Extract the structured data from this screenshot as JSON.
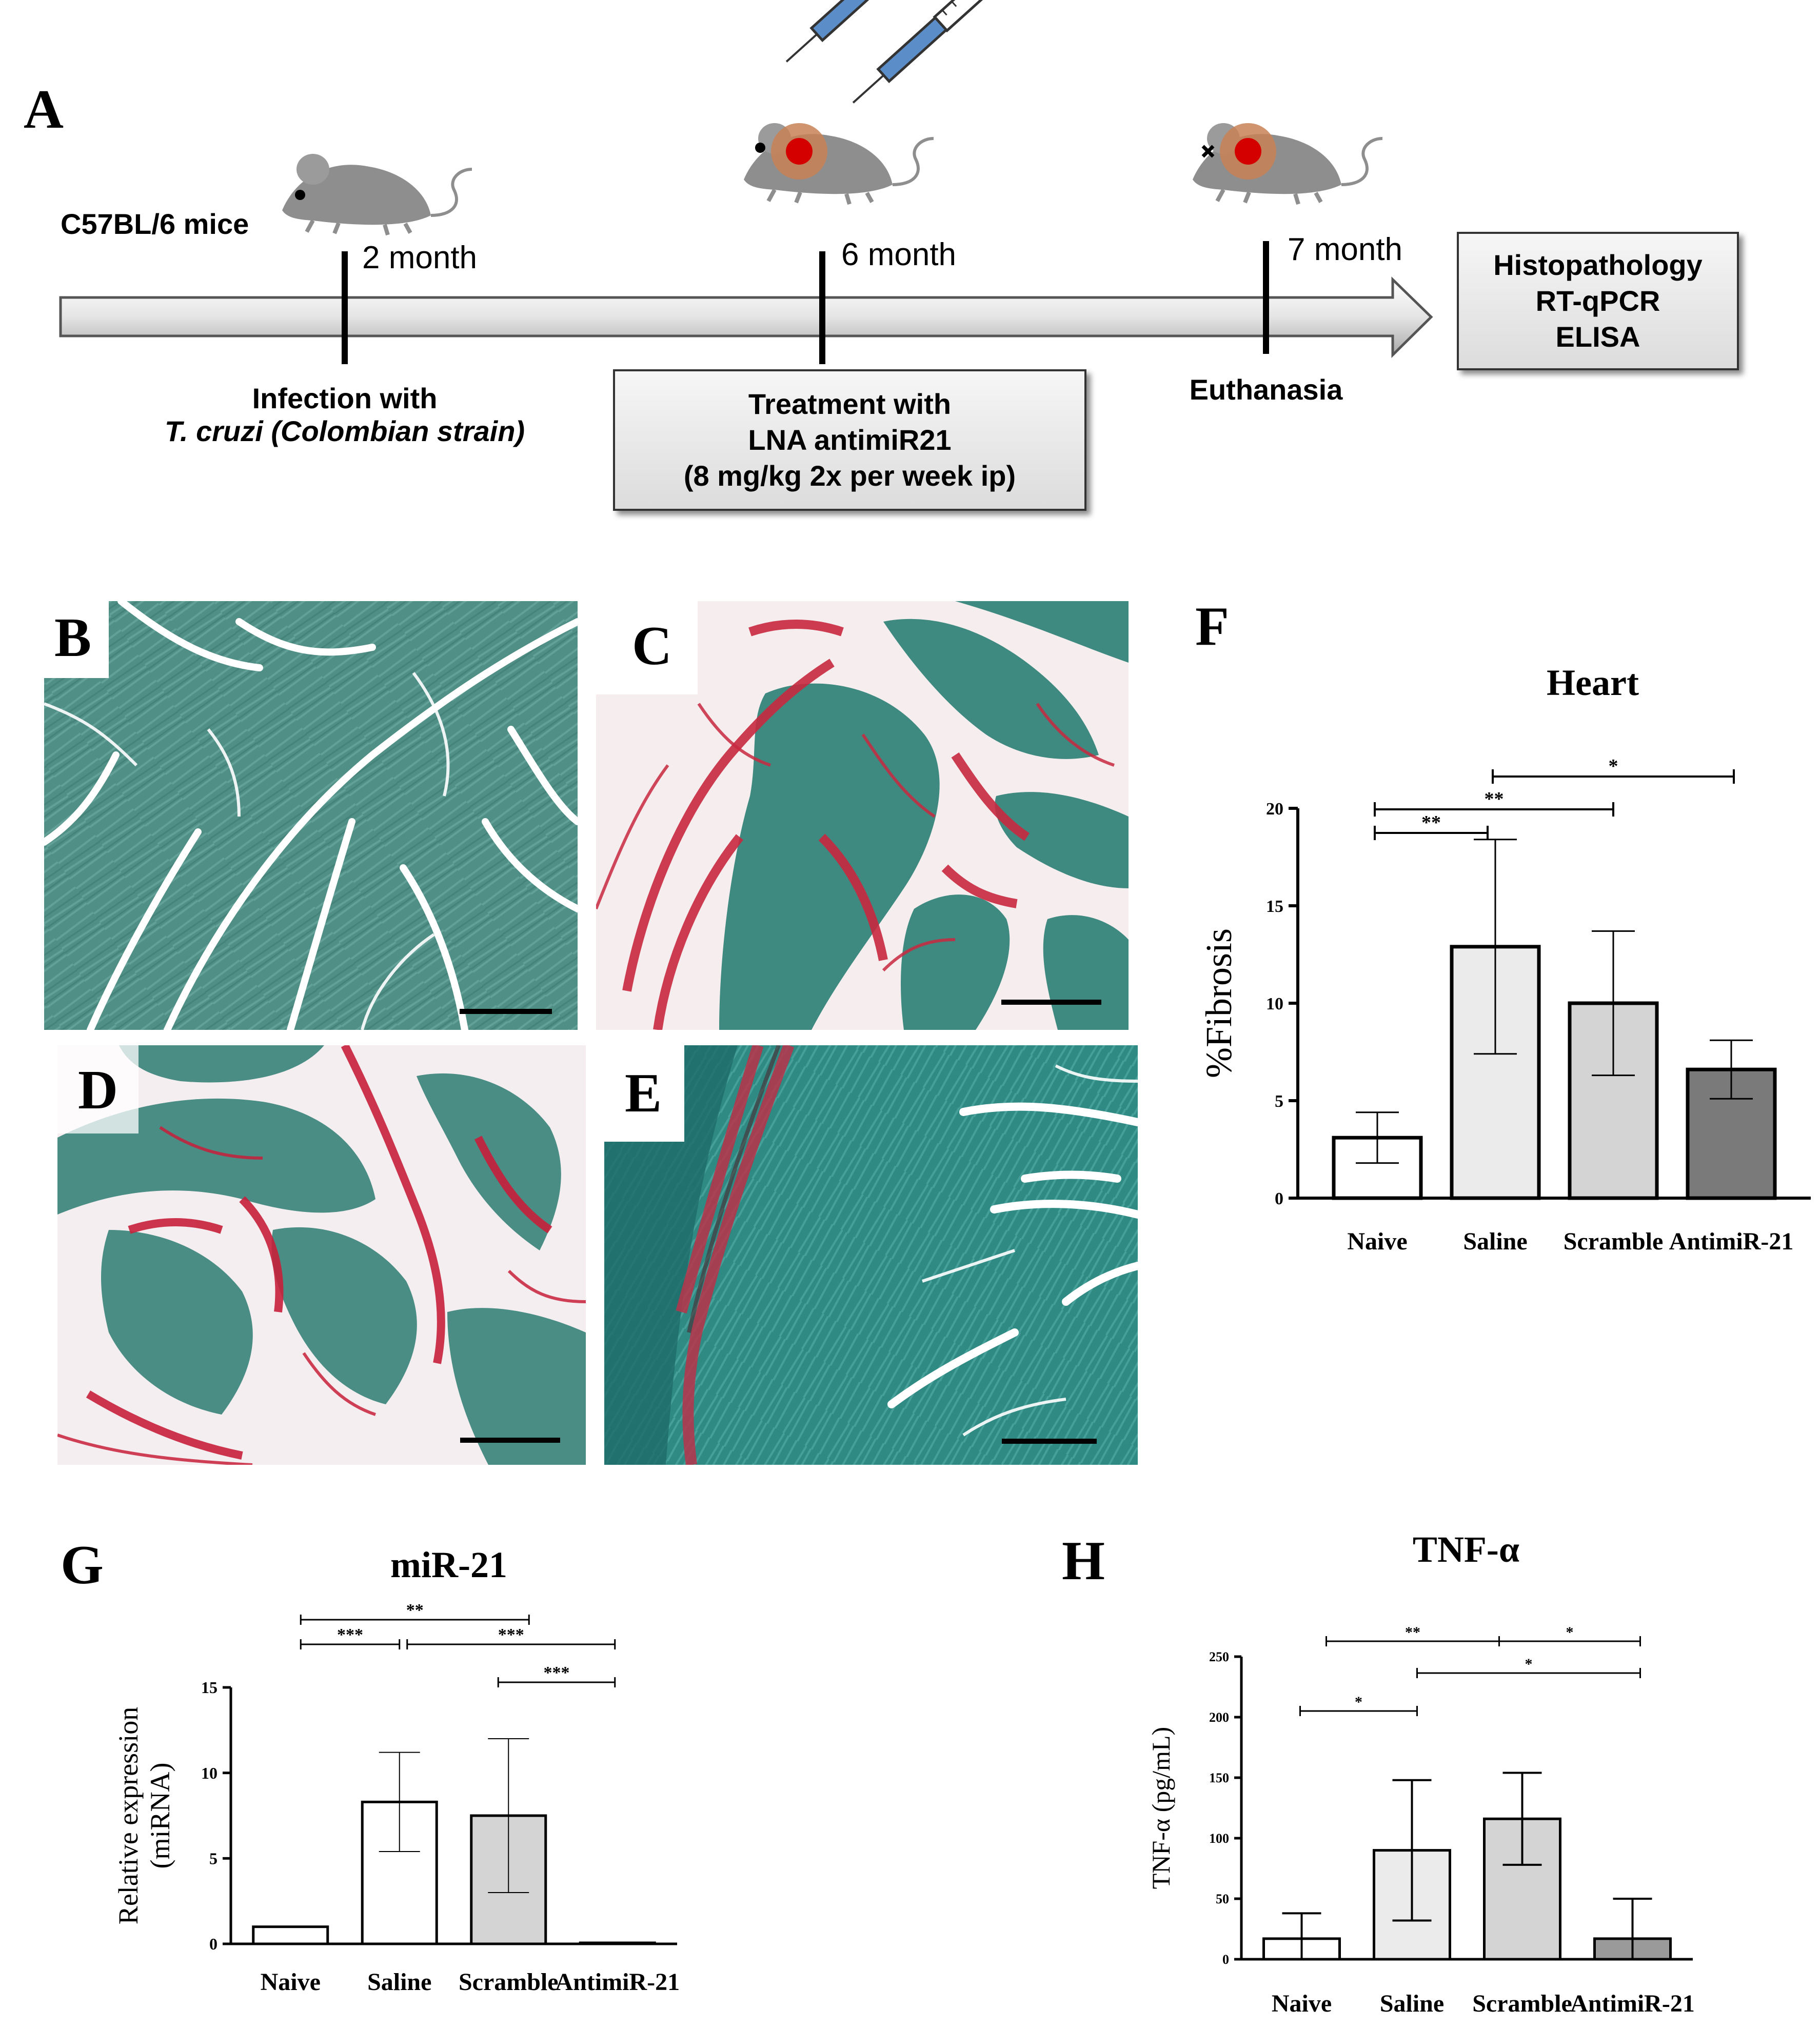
{
  "panel_a": {
    "letter": "A",
    "strain_label": "C57BL/6 mice",
    "ticks": [
      {
        "label": "2 month"
      },
      {
        "label": "6 month"
      },
      {
        "label": "7 month"
      }
    ],
    "infection_line1": "Infection with",
    "infection_line2": "T. cruzi (Colombian strain)",
    "treatment_line1": "Treatment with",
    "treatment_line2": "LNA antimiR21",
    "treatment_line3": "(8 mg/kg 2x per week ip)",
    "euthanasia": "Euthanasia",
    "assays_line1": "Histopathology",
    "assays_line2": "RT-qPCR",
    "assays_line3": "ELISA"
  },
  "micrographs": [
    {
      "letter": "B"
    },
    {
      "letter": "C"
    },
    {
      "letter": "D"
    },
    {
      "letter": "E"
    }
  ],
  "chart_data": [
    {
      "panel": "F",
      "type": "bar",
      "title": "Heart",
      "ylabel": "%Fibrosis",
      "xlabel": "",
      "categories": [
        "Naive",
        "Saline",
        "Scramble",
        "AntimiR-21"
      ],
      "values": [
        3.1,
        12.9,
        10.0,
        6.6
      ],
      "errors": [
        1.3,
        5.5,
        3.7,
        1.5
      ],
      "colors": [
        "#ffffff",
        "#ebebeb",
        "#d4d4d4",
        "#7a7a7a"
      ],
      "ylim": [
        0,
        20
      ],
      "yticks": [
        "0",
        "5",
        "10",
        "15",
        "20"
      ],
      "significance": [
        {
          "from": 0,
          "to": 1,
          "label": "**"
        },
        {
          "from": 0,
          "to": 2,
          "label": "**"
        },
        {
          "from": 1,
          "to": 3,
          "label": "*"
        }
      ]
    },
    {
      "panel": "G",
      "type": "bar",
      "title": "miR-21",
      "ylabel": "Relative expression",
      "ylabel2": "(miRNA)",
      "xlabel": "",
      "categories": [
        "Naive",
        "Saline",
        "Scramble",
        "AntimiR-21"
      ],
      "values": [
        1.0,
        8.3,
        7.5,
        0.05
      ],
      "errors": [
        0,
        2.9,
        4.5,
        0
      ],
      "colors": [
        "#ffffff",
        "#ffffff",
        "#d4d4d4",
        "#ffffff"
      ],
      "ylim": [
        0,
        15
      ],
      "yticks": [
        "0",
        "5",
        "10",
        "15"
      ],
      "significance": [
        {
          "from": 0,
          "to": 2,
          "label": "**"
        },
        {
          "from": 0,
          "to": 1,
          "label": "***"
        },
        {
          "from": 1,
          "to": 3,
          "label": "***"
        },
        {
          "from": 2,
          "to": 3,
          "label": "***"
        }
      ]
    },
    {
      "panel": "H",
      "type": "bar",
      "title": "TNF-α",
      "ylabel": "TNF-α (pg/mL)",
      "xlabel": "",
      "categories": [
        "Naive",
        "Saline",
        "Scramble",
        "AntimiR-21"
      ],
      "values": [
        17,
        90,
        116,
        17
      ],
      "errors": [
        21,
        58,
        38,
        33
      ],
      "colors": [
        "#ffffff",
        "#ebebeb",
        "#d4d4d4",
        "#9a9a9a"
      ],
      "ylim": [
        0,
        250
      ],
      "yticks": [
        "0",
        "50",
        "100",
        "150",
        "200",
        "250"
      ],
      "significance": [
        {
          "from": 0,
          "to": 2,
          "label": "**"
        },
        {
          "from": 2,
          "to": 3,
          "label": "*"
        },
        {
          "from": 1,
          "to": 3,
          "label": "*"
        },
        {
          "from": 0,
          "to": 1,
          "label": "*"
        }
      ]
    }
  ]
}
